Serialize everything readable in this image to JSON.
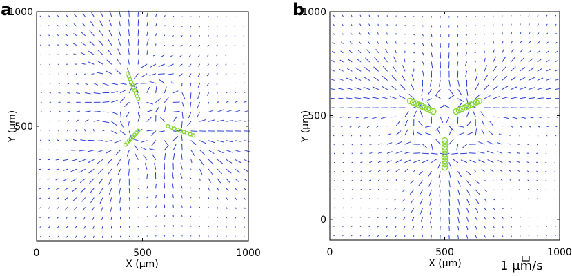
{
  "chart_data": [
    {
      "panel": "a",
      "type": "scatter",
      "subtype": "quiver",
      "xlabel": "X (µm)",
      "ylabel": "Y (µm)",
      "xlim": [
        0,
        1000
      ],
      "ylim": [
        0,
        1000
      ],
      "xticks": [
        0,
        500,
        1000
      ],
      "yticks": [
        500,
        1000
      ],
      "colors": {
        "arrows": "#2b3fd6",
        "beads": "#86d631"
      },
      "filaments": [
        {
          "name": "filament-1",
          "start": [
            430,
            730
          ],
          "end": [
            480,
            620
          ],
          "beads": 10
        },
        {
          "name": "filament-2",
          "start": [
            420,
            420
          ],
          "end": [
            480,
            480
          ],
          "beads": 8
        },
        {
          "name": "filament-3",
          "start": [
            620,
            500
          ],
          "end": [
            740,
            460
          ],
          "beads": 9
        }
      ]
    },
    {
      "panel": "b",
      "type": "scatter",
      "subtype": "quiver",
      "xlabel": "X (µm)",
      "ylabel": "Y (µm)",
      "xlim": [
        0,
        1000
      ],
      "ylim": [
        -100,
        1000
      ],
      "xticks": [
        0,
        500,
        1000
      ],
      "yticks": [
        0,
        500,
        1000
      ],
      "colors": {
        "arrows": "#2b3fd6",
        "beads": "#86d631"
      },
      "filaments": [
        {
          "name": "filament-1",
          "start": [
            350,
            570
          ],
          "end": [
            450,
            520
          ],
          "beads": 9
        },
        {
          "name": "filament-2",
          "start": [
            550,
            520
          ],
          "end": [
            650,
            570
          ],
          "beads": 9
        },
        {
          "name": "filament-3",
          "start": [
            500,
            380
          ],
          "end": [
            500,
            250
          ],
          "beads": 9
        }
      ]
    }
  ],
  "scale_bar": {
    "label": "1 µm/s",
    "value": 1
  }
}
